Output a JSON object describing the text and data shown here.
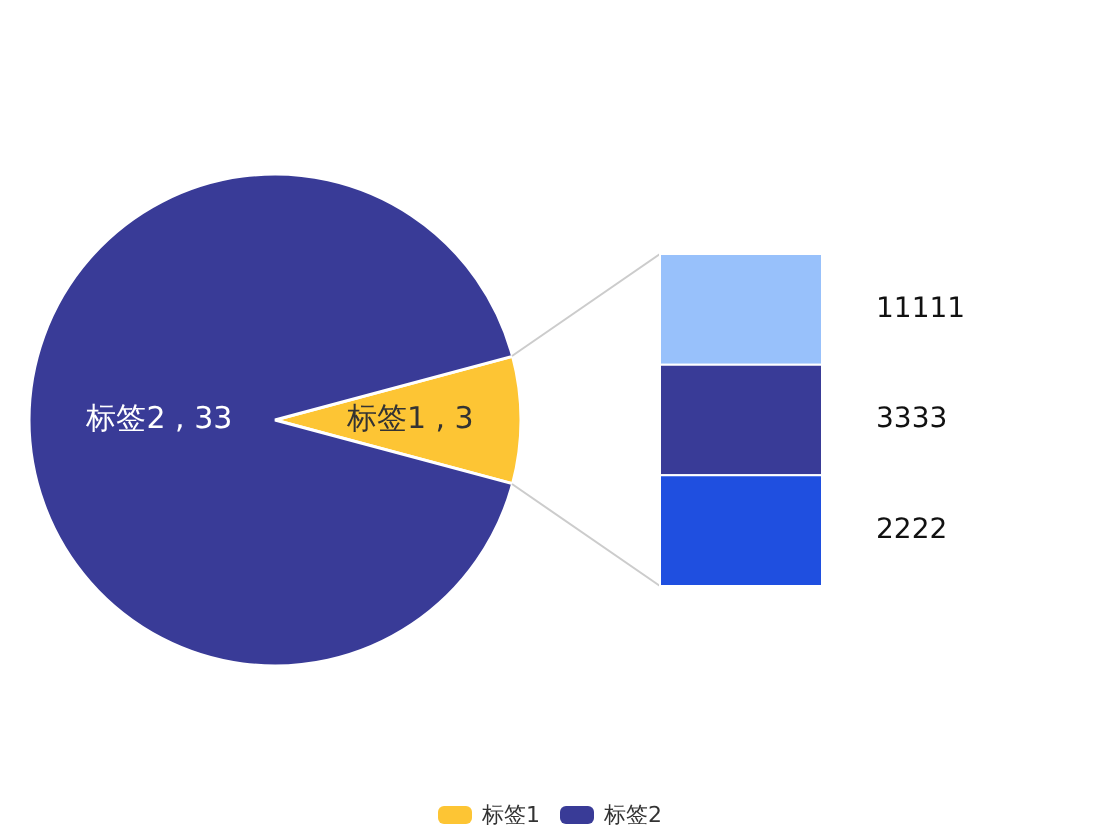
{
  "chart_data": [
    {
      "type": "pie",
      "categories": [
        "标签1",
        "标签2"
      ],
      "values": [
        3,
        33
      ],
      "colors": [
        "#fdc534",
        "#393b97"
      ],
      "value_labels": [
        "标签1 , 3",
        "标签2 , 33"
      ],
      "legend": "bottom"
    },
    {
      "type": "other",
      "categories": [
        null,
        null,
        null
      ],
      "values": [
        11111,
        3333,
        2222
      ],
      "colors": [
        "#98c1fb",
        "#393b97",
        "#1f4fe0"
      ],
      "data_labels": true
    }
  ]
}
